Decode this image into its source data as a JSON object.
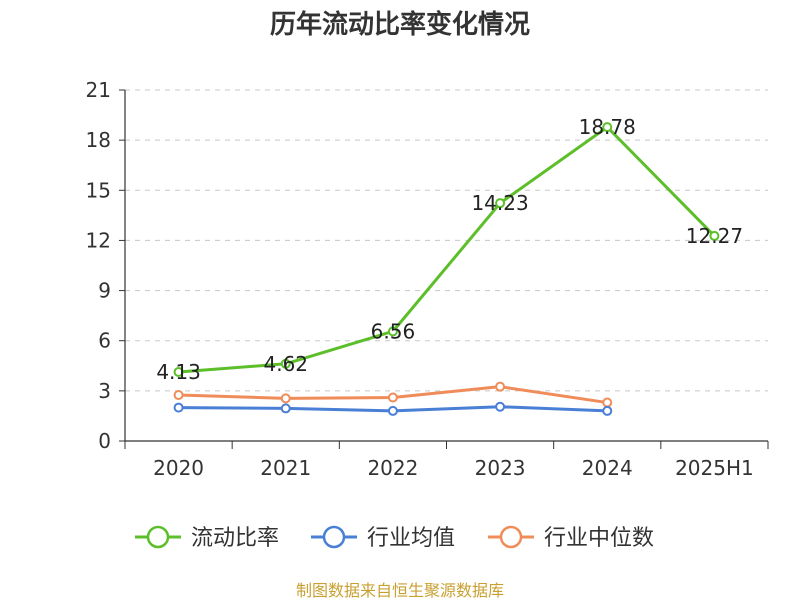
{
  "chart_data": {
    "type": "line",
    "title": "历年流动比率变化情况",
    "categories": [
      "2020",
      "2021",
      "2022",
      "2023",
      "2024",
      "2025H1"
    ],
    "y_ticks": [
      "0",
      "3",
      "6",
      "9",
      "12",
      "15",
      "18",
      "21"
    ],
    "ylim": [
      0,
      21
    ],
    "grid": true,
    "legend_position": "bottom",
    "series": [
      {
        "name": "流动比率",
        "color": "#5cbf2a",
        "values": [
          4.13,
          4.62,
          6.56,
          14.23,
          18.78,
          12.27
        ],
        "labels": [
          "4.13",
          "4.62",
          "6.56",
          "14.23",
          "18.78",
          "12.27"
        ]
      },
      {
        "name": "行业均值",
        "color": "#4a7fd6",
        "values": [
          2.0,
          1.95,
          1.8,
          2.05,
          1.8,
          null
        ]
      },
      {
        "name": "行业中位数",
        "color": "#f08c5a",
        "values": [
          2.75,
          2.55,
          2.6,
          3.25,
          2.3,
          null
        ]
      }
    ]
  },
  "source_text": "制图数据来自恒生聚源数据库"
}
